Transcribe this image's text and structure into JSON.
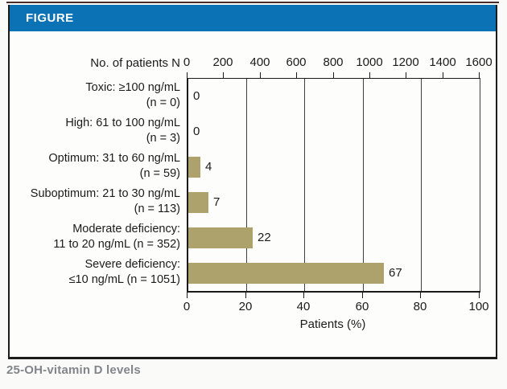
{
  "figure": {
    "header": "FIGURE",
    "caption": "25-OH-vitamin D levels"
  },
  "colors": {
    "header_bg": "#0b72b5",
    "bar": "#ada26b",
    "gridline": "#3f3f3f",
    "frame_border": "#1c1c1c",
    "caption_text": "#82858c"
  },
  "chart_data": {
    "type": "bar",
    "orientation": "horizontal",
    "title": "",
    "xlabel": "Patients (%)",
    "xlim": [
      0,
      100
    ],
    "x_ticks": [
      0,
      20,
      40,
      60,
      80,
      100
    ],
    "grid": "vertical gridlines at every 20%",
    "legend": "none",
    "top_axis": {
      "label": "No. of patients N",
      "lim": [
        0,
        1600
      ],
      "ticks": [
        0,
        200,
        400,
        600,
        800,
        1000,
        1200,
        1400,
        1600
      ]
    },
    "categories": [
      {
        "line1": "Toxic: ≥100 ng/mL",
        "line2": "(n = 0)"
      },
      {
        "line1": "High: 61 to 100 ng/mL",
        "line2": "(n = 3)"
      },
      {
        "line1": "Optimum: 31 to 60 ng/mL",
        "line2": "(n = 59)"
      },
      {
        "line1": "Suboptimum: 21 to 30 ng/mL",
        "line2": "(n = 113)"
      },
      {
        "line1": "Moderate deficiency:",
        "line2": "11 to 20 ng/mL (n = 352)"
      },
      {
        "line1": "Severe deficiency:",
        "line2": "≤10 ng/mL (n = 1051)"
      }
    ],
    "n_values": [
      0,
      3,
      59,
      113,
      352,
      1051
    ],
    "values": [
      0,
      0,
      4,
      7,
      22,
      67
    ],
    "value_labels": [
      "0",
      "0",
      "4",
      "7",
      "22",
      "67"
    ]
  }
}
